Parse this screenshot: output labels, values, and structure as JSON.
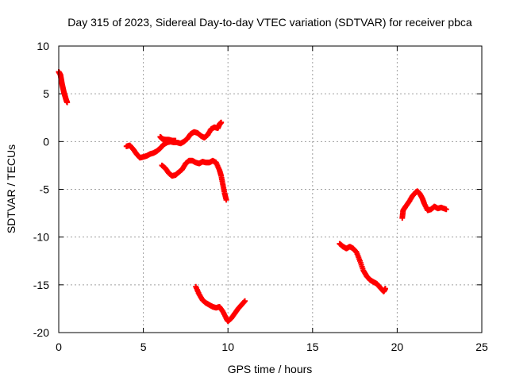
{
  "chart_data": {
    "type": "scatter",
    "title": "Day 315 of 2023, Sidereal Day-to-day VTEC variation (SDTVAR) for receiver pbca",
    "xlabel": "GPS time / hours",
    "ylabel": "SDTVAR / TECUs",
    "xlim": [
      0,
      25
    ],
    "ylim": [
      -20,
      10
    ],
    "xticks": [
      0,
      5,
      10,
      15,
      20,
      25
    ],
    "yticks": [
      -20,
      -15,
      -10,
      -5,
      0,
      5,
      10
    ],
    "xtick_labels": [
      "0",
      "5",
      "10",
      "15",
      "20",
      "25"
    ],
    "ytick_labels": [
      "-20",
      "-15",
      "-10",
      "-5",
      "0",
      "5",
      "10"
    ],
    "grid": true,
    "marker": "+",
    "series_color": "#ff0000",
    "series": [
      {
        "name": "arc1",
        "points": [
          [
            0.0,
            7.3
          ],
          [
            0.1,
            7.0
          ],
          [
            0.15,
            6.5
          ],
          [
            0.2,
            6.0
          ],
          [
            0.25,
            5.6
          ],
          [
            0.3,
            5.2
          ],
          [
            0.35,
            4.9
          ],
          [
            0.4,
            4.6
          ],
          [
            0.45,
            4.3
          ],
          [
            0.5,
            4.1
          ]
        ]
      },
      {
        "name": "arc2",
        "points": [
          [
            4.0,
            -0.5
          ],
          [
            4.2,
            -0.4
          ],
          [
            4.4,
            -0.8
          ],
          [
            4.6,
            -1.3
          ],
          [
            4.8,
            -1.7
          ],
          [
            5.0,
            -1.6
          ],
          [
            5.2,
            -1.5
          ],
          [
            5.4,
            -1.3
          ],
          [
            5.6,
            -1.2
          ],
          [
            5.8,
            -1.0
          ],
          [
            6.0,
            -0.7
          ],
          [
            6.2,
            -0.3
          ],
          [
            6.4,
            -0.1
          ],
          [
            6.6,
            0.0
          ],
          [
            6.8,
            -0.1
          ],
          [
            7.0,
            -0.1
          ],
          [
            7.2,
            -0.2
          ],
          [
            7.4,
            0.0
          ],
          [
            7.6,
            0.3
          ],
          [
            7.8,
            0.8
          ],
          [
            8.0,
            1.0
          ],
          [
            8.2,
            0.9
          ],
          [
            8.4,
            0.6
          ],
          [
            8.6,
            0.4
          ],
          [
            8.8,
            0.7
          ],
          [
            9.0,
            1.3
          ],
          [
            9.2,
            1.5
          ],
          [
            9.4,
            1.4
          ],
          [
            9.5,
            1.8
          ],
          [
            9.6,
            2.0
          ]
        ]
      },
      {
        "name": "arc3",
        "points": [
          [
            6.0,
            0.5
          ],
          [
            6.1,
            0.3
          ],
          [
            6.3,
            0.2
          ],
          [
            6.5,
            0.2
          ],
          [
            6.7,
            0.1
          ],
          [
            6.9,
            0.1
          ]
        ]
      },
      {
        "name": "arc4",
        "points": [
          [
            6.1,
            -2.5
          ],
          [
            6.3,
            -2.8
          ],
          [
            6.5,
            -3.3
          ],
          [
            6.7,
            -3.6
          ],
          [
            6.9,
            -3.5
          ],
          [
            7.1,
            -3.2
          ],
          [
            7.3,
            -2.9
          ],
          [
            7.5,
            -2.3
          ],
          [
            7.7,
            -2.0
          ],
          [
            7.9,
            -2.0
          ],
          [
            8.1,
            -2.2
          ],
          [
            8.3,
            -2.3
          ],
          [
            8.5,
            -2.1
          ],
          [
            8.7,
            -2.2
          ],
          [
            8.9,
            -2.2
          ],
          [
            9.1,
            -2.0
          ],
          [
            9.3,
            -2.2
          ],
          [
            9.5,
            -3.0
          ],
          [
            9.6,
            -3.6
          ],
          [
            9.7,
            -4.5
          ],
          [
            9.8,
            -5.4
          ],
          [
            9.9,
            -6.1
          ]
        ]
      },
      {
        "name": "arc5",
        "points": [
          [
            8.1,
            -15.2
          ],
          [
            8.3,
            -16.0
          ],
          [
            8.5,
            -16.6
          ],
          [
            8.7,
            -16.9
          ],
          [
            8.9,
            -17.1
          ],
          [
            9.1,
            -17.3
          ],
          [
            9.3,
            -17.4
          ],
          [
            9.5,
            -17.3
          ],
          [
            9.7,
            -17.8
          ],
          [
            9.9,
            -18.5
          ],
          [
            10.0,
            -18.8
          ],
          [
            10.2,
            -18.5
          ],
          [
            10.4,
            -18.0
          ],
          [
            10.6,
            -17.5
          ],
          [
            10.8,
            -17.1
          ],
          [
            11.0,
            -16.7
          ]
        ]
      },
      {
        "name": "arc6",
        "points": [
          [
            16.6,
            -10.7
          ],
          [
            16.8,
            -11.0
          ],
          [
            17.0,
            -11.2
          ],
          [
            17.2,
            -11.0
          ],
          [
            17.4,
            -11.2
          ],
          [
            17.6,
            -11.6
          ],
          [
            17.8,
            -12.5
          ],
          [
            18.0,
            -13.5
          ],
          [
            18.2,
            -14.1
          ],
          [
            18.4,
            -14.5
          ],
          [
            18.6,
            -14.7
          ],
          [
            18.8,
            -14.9
          ],
          [
            19.0,
            -15.3
          ],
          [
            19.2,
            -15.7
          ],
          [
            19.3,
            -15.4
          ]
        ]
      },
      {
        "name": "arc7",
        "points": [
          [
            20.3,
            -8.0
          ],
          [
            20.35,
            -7.2
          ],
          [
            20.5,
            -6.8
          ],
          [
            20.7,
            -6.3
          ],
          [
            20.9,
            -5.7
          ],
          [
            21.1,
            -5.3
          ],
          [
            21.2,
            -5.2
          ],
          [
            21.35,
            -5.5
          ],
          [
            21.5,
            -6.0
          ],
          [
            21.6,
            -6.5
          ],
          [
            21.8,
            -7.2
          ],
          [
            22.0,
            -7.1
          ],
          [
            22.2,
            -6.8
          ],
          [
            22.4,
            -7.0
          ],
          [
            22.6,
            -6.9
          ],
          [
            22.9,
            -7.1
          ]
        ]
      }
    ]
  }
}
